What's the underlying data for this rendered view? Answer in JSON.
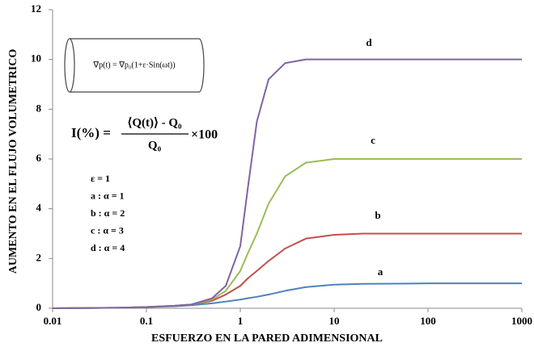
{
  "chart_data": {
    "type": "line",
    "xlabel": "ESFUERZO EN LA PARED ADIMENSIONAL",
    "ylabel": "AUMENTO EN EL FLUJO VOLUMETRICO",
    "x": [
      0.01,
      0.05,
      0.1,
      0.2,
      0.3,
      0.5,
      0.7,
      1,
      1.2,
      1.5,
      2,
      3,
      5,
      10,
      20,
      100,
      1000
    ],
    "series": [
      {
        "name": "a",
        "color": "#4f81bd",
        "values": [
          0,
          0.02,
          0.05,
          0.08,
          0.12,
          0.2,
          0.27,
          0.35,
          0.4,
          0.46,
          0.55,
          0.7,
          0.85,
          0.95,
          0.98,
          1,
          1
        ]
      },
      {
        "name": "b",
        "color": "#c0504d",
        "values": [
          0,
          0.02,
          0.05,
          0.1,
          0.15,
          0.3,
          0.55,
          0.9,
          1.2,
          1.5,
          1.9,
          2.4,
          2.8,
          2.95,
          3,
          3,
          3
        ]
      },
      {
        "name": "c",
        "color": "#9bbb59",
        "values": [
          0,
          0.02,
          0.05,
          0.1,
          0.15,
          0.35,
          0.7,
          1.5,
          2.2,
          3,
          4.2,
          5.3,
          5.85,
          6,
          6,
          6,
          6
        ]
      },
      {
        "name": "d",
        "color": "#8064a2",
        "values": [
          0,
          0.02,
          0.05,
          0.1,
          0.15,
          0.4,
          0.9,
          2.5,
          4.8,
          7.5,
          9.2,
          9.85,
          10,
          10,
          10,
          10,
          10
        ]
      }
    ],
    "xscale": "log",
    "xlim": [
      0.01,
      1000
    ],
    "xticks": [
      0.01,
      0.1,
      1,
      10,
      100,
      1000
    ],
    "ylim": [
      0,
      12
    ],
    "yticks": [
      0,
      2,
      4,
      6,
      8,
      10,
      12
    ],
    "grid": false,
    "annotations": {
      "pipe_equation": "∇p(t) = ∇p₀(1+ε·Sin(ωt))",
      "formula_lhs": "I(%) =",
      "formula_num": "⟨Q(t)⟩ - Q₀",
      "formula_den": "Q₀",
      "formula_mult": "×100",
      "params": [
        "ε = 1",
        "a : α = 1",
        "b : α = 2",
        "c : α = 3",
        "d : α = 4"
      ]
    }
  }
}
